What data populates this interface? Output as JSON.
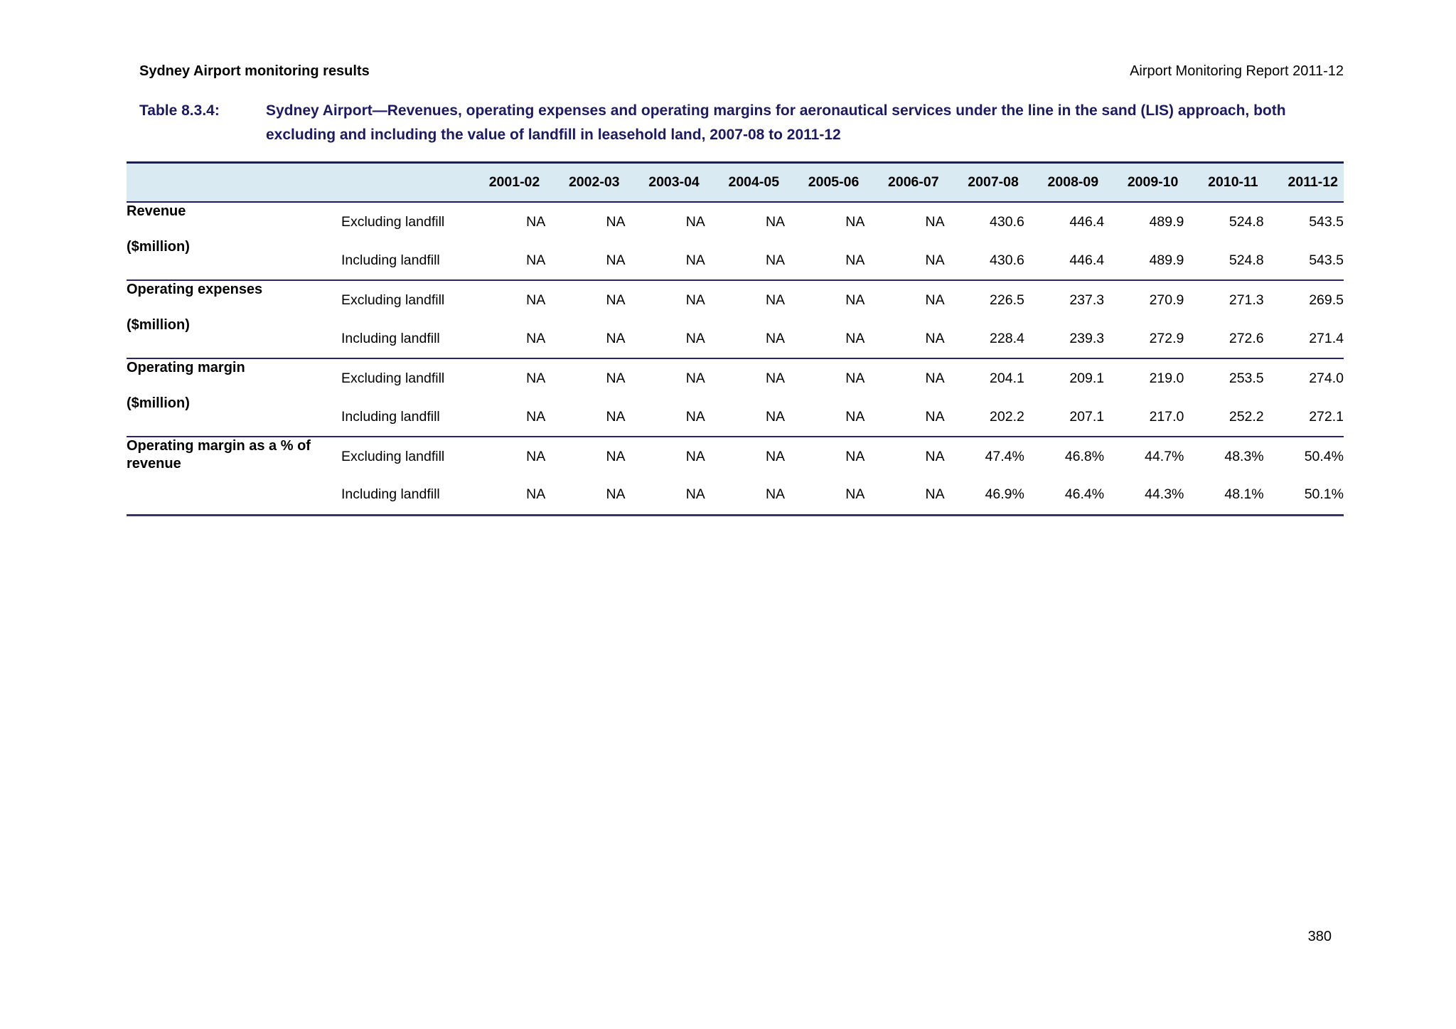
{
  "page": {
    "header_left": "Sydney Airport monitoring results",
    "header_right": "Airport Monitoring Report 2011-12",
    "page_number": "380"
  },
  "table_title": {
    "label": "Table 8.3.4:",
    "text": "Sydney Airport—Revenues, operating expenses and operating margins for aeronautical services under the line in the sand (LIS) approach, both excluding and including the value of landfill in leasehold land, 2007-08 to 2011-12"
  },
  "table": {
    "year_columns": [
      "2001-02",
      "2002-03",
      "2003-04",
      "2004-05",
      "2005-06",
      "2006-07",
      "2007-08",
      "2008-09",
      "2009-10",
      "2010-11",
      "2011-12"
    ],
    "groups": [
      {
        "label": "Revenue",
        "unit": "($million)",
        "rows": [
          {
            "sublabel": "Excluding landfill",
            "values": [
              "NA",
              "NA",
              "NA",
              "NA",
              "NA",
              "NA",
              "430.6",
              "446.4",
              "489.9",
              "524.8",
              "543.5"
            ]
          },
          {
            "sublabel": "Including landfill",
            "values": [
              "NA",
              "NA",
              "NA",
              "NA",
              "NA",
              "NA",
              "430.6",
              "446.4",
              "489.9",
              "524.8",
              "543.5"
            ]
          }
        ]
      },
      {
        "label": "Operating expenses",
        "unit": "($million)",
        "rows": [
          {
            "sublabel": "Excluding landfill",
            "values": [
              "NA",
              "NA",
              "NA",
              "NA",
              "NA",
              "NA",
              "226.5",
              "237.3",
              "270.9",
              "271.3",
              "269.5"
            ]
          },
          {
            "sublabel": "Including landfill",
            "values": [
              "NA",
              "NA",
              "NA",
              "NA",
              "NA",
              "NA",
              "228.4",
              "239.3",
              "272.9",
              "272.6",
              "271.4"
            ]
          }
        ]
      },
      {
        "label": "Operating margin",
        "unit": "($million)",
        "rows": [
          {
            "sublabel": "Excluding landfill",
            "values": [
              "NA",
              "NA",
              "NA",
              "NA",
              "NA",
              "NA",
              "204.1",
              "209.1",
              "219.0",
              "253.5",
              "274.0"
            ]
          },
          {
            "sublabel": "Including landfill",
            "values": [
              "NA",
              "NA",
              "NA",
              "NA",
              "NA",
              "NA",
              "202.2",
              "207.1",
              "217.0",
              "252.2",
              "272.1"
            ]
          }
        ]
      },
      {
        "label": "Operating margin as a % of revenue",
        "unit": "",
        "rows": [
          {
            "sublabel": "Excluding landfill",
            "values": [
              "NA",
              "NA",
              "NA",
              "NA",
              "NA",
              "NA",
              "47.4%",
              "46.8%",
              "44.7%",
              "48.3%",
              "50.4%"
            ]
          },
          {
            "sublabel": "Including landfill",
            "values": [
              "NA",
              "NA",
              "NA",
              "NA",
              "NA",
              "NA",
              "46.9%",
              "46.4%",
              "44.3%",
              "48.1%",
              "50.1%"
            ]
          }
        ]
      }
    ]
  },
  "colors": {
    "title_navy": "#1c1a63",
    "rule_navy": "#1c1a63",
    "header_band_blue": "#d9eaf2",
    "group_rule": "#2a2569",
    "table_bottom_rule": "#39306f"
  }
}
